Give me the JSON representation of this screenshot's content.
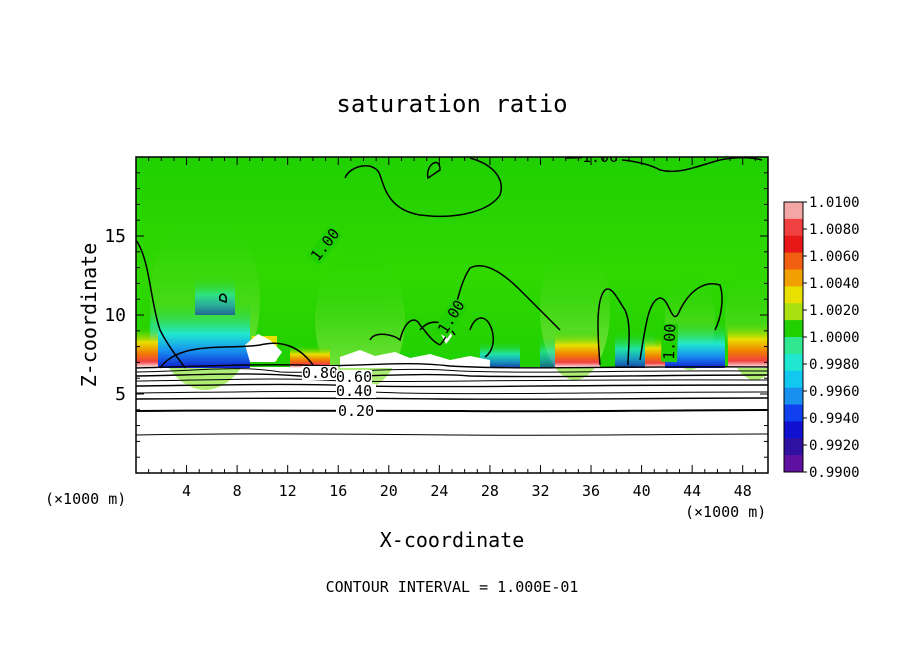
{
  "chart_data": {
    "type": "heatmap",
    "title": "saturation ratio",
    "xlabel": "X-coordinate",
    "ylabel": "Z-coordinate",
    "x_unit": "(×1000 m)",
    "y_unit": "(×1000 m)",
    "footnote": "CONTOUR INTERVAL = 1.000E-01",
    "xlim": [
      0,
      50
    ],
    "ylim": [
      0,
      20
    ],
    "x_ticks": [
      4,
      8,
      12,
      16,
      20,
      24,
      28,
      32,
      36,
      40,
      44,
      48
    ],
    "x_tick_labels": [
      "4",
      "8",
      "12",
      "16",
      "20",
      "24",
      "28",
      "32",
      "36",
      "40",
      "44",
      "48"
    ],
    "y_ticks": [
      5,
      10,
      15
    ],
    "y_tick_labels": [
      "5",
      "10",
      "15"
    ],
    "colorbar": {
      "labels": [
        "1.0100",
        "1.0080",
        "1.0060",
        "1.0040",
        "1.0020",
        "1.0000",
        "0.9980",
        "0.9960",
        "0.9940",
        "0.9920",
        "0.9900"
      ],
      "colors": [
        "#f4a6a6",
        "#f04040",
        "#e81818",
        "#f06010",
        "#f0a000",
        "#e8e000",
        "#a8e010",
        "#20d000",
        "#30e890",
        "#20e8d0",
        "#10c8f0",
        "#1890f0",
        "#1040f0",
        "#1010d0",
        "#3010a0",
        "#6010a0"
      ]
    },
    "contour_labels": [
      {
        "text": "1.00",
        "x": 29.1,
        "z": 19.8
      },
      {
        "text": "1.00",
        "x": 12.7,
        "z": 14.3
      },
      {
        "text": "1.00",
        "x": 22.1,
        "z": 9.8
      },
      {
        "text": "1.00",
        "x": 36.2,
        "z": 8.2
      },
      {
        "text": "0.80",
        "x": 14.2,
        "z": 6.2
      },
      {
        "text": "0.60",
        "x": 17.4,
        "z": 5.9
      },
      {
        "text": "0.40",
        "x": 16.7,
        "z": 5.0
      },
      {
        "text": "0.20",
        "x": 16.5,
        "z": 3.8
      }
    ]
  }
}
